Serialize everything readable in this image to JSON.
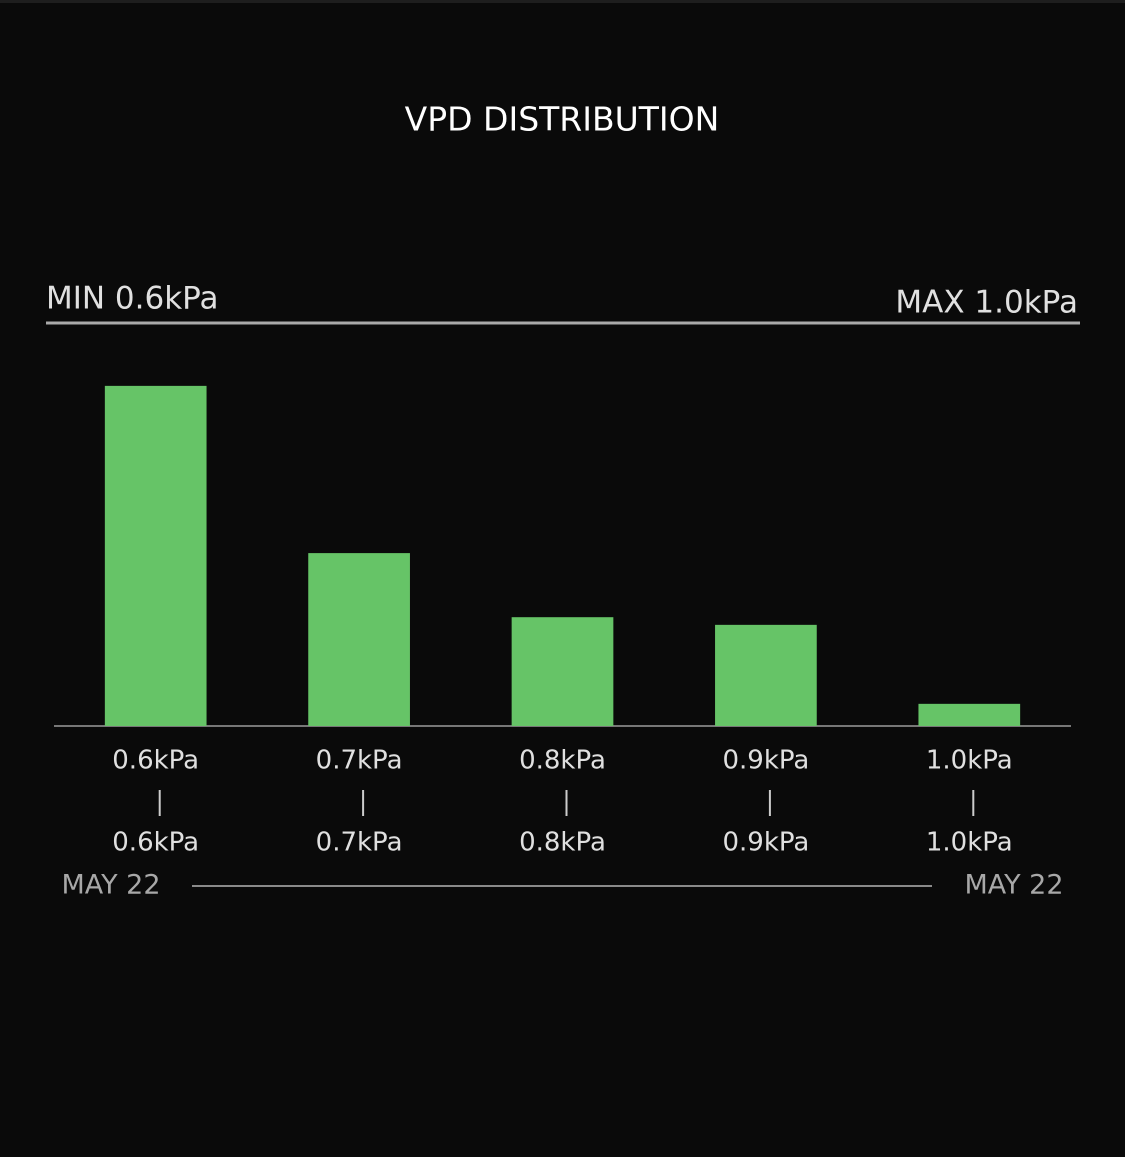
{
  "chart_data": {
    "type": "bar",
    "title": "VPD DISTRIBUTION",
    "min_label": "MIN 0.6kPa",
    "max_label": "MAX 1.0kPa",
    "categories": [
      "0.6kPa",
      "0.7kPa",
      "0.8kPa",
      "0.9kPa",
      "1.0kPa"
    ],
    "categories_to": [
      "0.6kPa",
      "0.7kPa",
      "0.8kPa",
      "0.9kPa",
      "1.0kPa"
    ],
    "values": [
      84.4,
      42.9,
      27,
      25.1,
      5.5
    ],
    "color": "#66c467",
    "ylim": [
      0,
      100
    ],
    "start_date": "MAY 22",
    "end_date": "MAY 22"
  }
}
